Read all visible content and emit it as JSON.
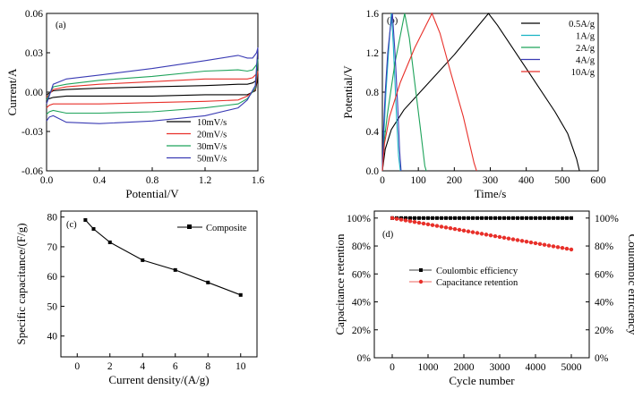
{
  "chart_data": [
    {
      "panel": "(a)",
      "type": "line",
      "xlabel": "Potential/V",
      "ylabel": "Current/A",
      "xlim": [
        0,
        1.6
      ],
      "ylim": [
        -0.06,
        0.06
      ],
      "xticks": [
        "0.0",
        "0.4",
        "0.8",
        "1.2",
        "1.6"
      ],
      "yticks": [
        "-0.06",
        "-0.03",
        "0.00",
        "0.03",
        "0.06"
      ],
      "legend_position": "bottom-right",
      "series": [
        {
          "name": "10mV/s",
          "color": "#000000",
          "x": [
            0,
            0.05,
            0.15,
            0.4,
            0.8,
            1.2,
            1.45,
            1.52,
            1.56,
            1.59,
            1.6,
            1.58,
            1.52,
            1.45,
            1.2,
            0.8,
            0.4,
            0.15,
            0.05,
            0.02,
            0
          ],
          "y": [
            -0.002,
            0.001,
            0.002,
            0.003,
            0.004,
            0.005,
            0.006,
            0.006,
            0.007,
            0.009,
            0.011,
            0.001,
            -0.002,
            -0.002,
            -0.002,
            -0.003,
            -0.003,
            -0.003,
            -0.004,
            -0.005,
            -0.006
          ]
        },
        {
          "name": "20mV/s",
          "color": "#e8302a",
          "x": [
            0,
            0.05,
            0.15,
            0.4,
            0.8,
            1.2,
            1.45,
            1.52,
            1.56,
            1.59,
            1.6,
            1.58,
            1.52,
            1.45,
            1.2,
            0.8,
            0.4,
            0.15,
            0.05,
            0.02,
            0
          ],
          "y": [
            -0.004,
            0.002,
            0.004,
            0.006,
            0.008,
            0.01,
            0.01,
            0.01,
            0.011,
            0.014,
            0.016,
            0.002,
            -0.003,
            -0.006,
            -0.007,
            -0.008,
            -0.009,
            -0.009,
            -0.009,
            -0.01,
            -0.012
          ]
        },
        {
          "name": "30mV/s",
          "color": "#1fa35b",
          "x": [
            0,
            0.05,
            0.15,
            0.4,
            0.8,
            1.2,
            1.45,
            1.52,
            1.56,
            1.59,
            1.6,
            1.58,
            1.52,
            1.45,
            1.2,
            0.8,
            0.4,
            0.15,
            0.05,
            0.02,
            0
          ],
          "y": [
            -0.006,
            0.004,
            0.006,
            0.009,
            0.012,
            0.016,
            0.017,
            0.016,
            0.017,
            0.021,
            0.025,
            0.003,
            -0.005,
            -0.009,
            -0.012,
            -0.015,
            -0.016,
            -0.016,
            -0.014,
            -0.015,
            -0.017
          ]
        },
        {
          "name": "50mV/s",
          "color": "#3a3bb4",
          "x": [
            0,
            0.05,
            0.15,
            0.4,
            0.8,
            1.2,
            1.45,
            1.52,
            1.56,
            1.59,
            1.6,
            1.58,
            1.52,
            1.45,
            1.2,
            0.8,
            0.4,
            0.15,
            0.05,
            0.02,
            0
          ],
          "y": [
            -0.009,
            0.006,
            0.01,
            0.013,
            0.018,
            0.024,
            0.028,
            0.026,
            0.026,
            0.03,
            0.034,
            0.005,
            -0.006,
            -0.012,
            -0.018,
            -0.022,
            -0.024,
            -0.023,
            -0.018,
            -0.019,
            -0.022
          ]
        }
      ]
    },
    {
      "panel": "(b)",
      "type": "line",
      "xlabel": "Time/s",
      "ylabel": "Potential/V",
      "xlim": [
        0,
        600
      ],
      "ylim": [
        0,
        1.6
      ],
      "xticks": [
        "0",
        "100",
        "200",
        "300",
        "400",
        "500",
        "600"
      ],
      "yticks": [
        "0.0",
        "0.4",
        "0.8",
        "1.2",
        "1.6"
      ],
      "legend_position": "top-right",
      "series": [
        {
          "name": "0.5A/g",
          "color": "#000000",
          "x": [
            0,
            8,
            25,
            60,
            120,
            200,
            295,
            320,
            400,
            480,
            515,
            540,
            548
          ],
          "y": [
            0,
            0.22,
            0.42,
            0.62,
            0.86,
            1.18,
            1.6,
            1.48,
            1.04,
            0.6,
            0.38,
            0.12,
            0
          ]
        },
        {
          "name": "1A/g",
          "color": "#17b3c4",
          "x": [
            0,
            4,
            10,
            18,
            25,
            30,
            35,
            40,
            45,
            50
          ],
          "y": [
            0,
            0.35,
            0.8,
            1.25,
            1.6,
            1.3,
            0.9,
            0.5,
            0.15,
            0
          ]
        },
        {
          "name": "2A/g",
          "color": "#1fa35b",
          "x": [
            0,
            5,
            15,
            35,
            62,
            75,
            90,
            105,
            118,
            122
          ],
          "y": [
            0,
            0.3,
            0.6,
            1.1,
            1.6,
            1.35,
            0.9,
            0.45,
            0.05,
            0
          ]
        },
        {
          "name": "4A/g",
          "color": "#3a3bb4",
          "x": [
            0,
            3,
            8,
            15,
            22,
            28,
            35,
            42,
            48,
            52
          ],
          "y": [
            0,
            0.4,
            0.8,
            1.2,
            1.45,
            1.6,
            1.2,
            0.7,
            0.2,
            0
          ]
        },
        {
          "name": "10A/g",
          "color": "#e8302a",
          "x": [
            0,
            6,
            20,
            50,
            90,
            138,
            160,
            190,
            225,
            255,
            262
          ],
          "y": [
            0,
            0.28,
            0.55,
            0.9,
            1.25,
            1.6,
            1.4,
            1.0,
            0.55,
            0.08,
            0
          ]
        }
      ]
    },
    {
      "panel": "(c)",
      "type": "line",
      "xlabel": "Current density/(A/g)",
      "ylabel": "Specific capacitance/(F/g)",
      "xlim": [
        -1,
        11
      ],
      "ylim": [
        33,
        82
      ],
      "xticks": [
        "0",
        "2",
        "4",
        "6",
        "8",
        "10"
      ],
      "yticks": [
        "40",
        "50",
        "60",
        "70",
        "80"
      ],
      "legend_position": "top-right",
      "series": [
        {
          "name": "Composite",
          "color": "#000000",
          "x": [
            0.5,
            1,
            2,
            4,
            6,
            8,
            10
          ],
          "y": [
            79,
            76,
            71.5,
            65.5,
            62.2,
            58,
            53.8
          ]
        }
      ]
    },
    {
      "panel": "(d)",
      "type": "scatter",
      "xlabel": "Cycle number",
      "ylabel": "Capacitance retention",
      "ylabel_right": "Coulombic efficiency",
      "xlim": [
        -500,
        5500
      ],
      "ylim": [
        0,
        105
      ],
      "xticks": [
        "0",
        "1000",
        "2000",
        "3000",
        "4000",
        "5000"
      ],
      "yticks": [
        "0%",
        "20%",
        "40%",
        "60%",
        "80%",
        "100%"
      ],
      "yticks_right": [
        "0%",
        "20%",
        "40%",
        "60%",
        "80%",
        "100%"
      ],
      "legend_position": "center-left",
      "series": [
        {
          "name": "Coulombic efficiency",
          "color": "#000000",
          "marker": "square",
          "x_start": 0,
          "x_end": 5000,
          "y_start": 100,
          "y_end": 100,
          "points": 41
        },
        {
          "name": "Capacitance retention",
          "color": "#e8302a",
          "marker": "circle",
          "x_start": 0,
          "x_end": 5000,
          "y_start": 100,
          "y_end": 77.5,
          "points": 41
        }
      ]
    }
  ]
}
